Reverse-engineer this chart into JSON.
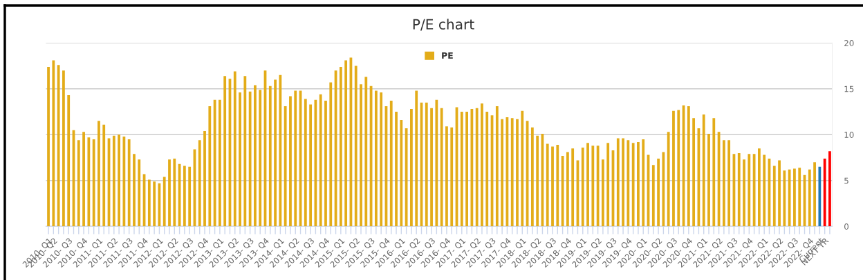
{
  "chart_data": {
    "type": "bar",
    "title": "P/E chart",
    "categories": [
      "2010- Q1",
      "2010- Q2",
      null,
      null,
      "2010- Q3",
      null,
      null,
      "2010- Q4",
      null,
      null,
      "2011- Q1",
      null,
      null,
      "2011- Q2",
      null,
      null,
      "2011- Q3",
      null,
      null,
      "2011- Q4",
      null,
      null,
      "2012- Q1",
      null,
      null,
      "2012- Q2",
      null,
      null,
      "2012- Q3",
      null,
      null,
      "2012- Q4",
      null,
      null,
      "2013- Q1",
      null,
      null,
      "2013- Q2",
      null,
      null,
      "2013- Q3",
      null,
      null,
      "2013- Q4",
      null,
      null,
      "2014- Q1",
      null,
      null,
      "2014- Q2",
      null,
      null,
      "2014- Q3",
      null,
      null,
      "2014- Q4",
      null,
      null,
      "2015- Q1",
      null,
      null,
      "2015- Q2",
      null,
      null,
      "2015- Q3",
      null,
      null,
      "2015- Q4",
      null,
      null,
      "2016- Q1",
      null,
      null,
      "2016- Q2",
      null,
      null,
      "2016- Q3",
      null,
      null,
      "2016- Q4",
      null,
      null,
      "2017- Q1",
      null,
      null,
      "2017- Q2",
      null,
      null,
      "2017- Q3",
      null,
      null,
      "2017- Q4",
      null,
      null,
      "2018- Q1",
      null,
      null,
      "2018- Q2",
      null,
      null,
      "2018- Q3",
      null,
      null,
      "2018- Q4",
      null,
      null,
      "2019- Q1",
      null,
      null,
      "2019- Q2",
      null,
      null,
      "2019- Q3",
      null,
      null,
      "2019- Q4",
      null,
      null,
      "2020- Q1",
      null,
      null,
      "2020- Q2",
      null,
      null,
      "2020- Q3",
      null,
      null,
      "2020- Q4",
      null,
      null,
      "2021- Q1",
      null,
      null,
      "2021- Q2",
      null,
      null,
      "2021- Q3",
      null,
      null,
      "2021- Q4",
      null,
      null,
      "2022- Q1",
      null,
      null,
      "2022- Q2",
      null,
      null,
      "2022- Q3",
      null,
      null,
      "2022- Q4",
      null,
      "Current",
      "NEXT YR",
      null
    ],
    "series": [
      {
        "name": "PE",
        "color": "#e3ac19",
        "colors": [
          "#e3ac19",
          "#e3ac19",
          "#e3ac19",
          "#e3ac19",
          "#e3ac19",
          "#e3ac19",
          "#e3ac19",
          "#e3ac19",
          "#e3ac19",
          "#e3ac19",
          "#e3ac19",
          "#e3ac19",
          "#e3ac19",
          "#e3ac19",
          "#e3ac19",
          "#e3ac19",
          "#e3ac19",
          "#e3ac19",
          "#e3ac19",
          "#e3ac19",
          "#e3ac19",
          "#e3ac19",
          "#e3ac19",
          "#e3ac19",
          "#e3ac19",
          "#e3ac19",
          "#e3ac19",
          "#e3ac19",
          "#e3ac19",
          "#e3ac19",
          "#e3ac19",
          "#e3ac19",
          "#e3ac19",
          "#e3ac19",
          "#e3ac19",
          "#e3ac19",
          "#e3ac19",
          "#e3ac19",
          "#e3ac19",
          "#e3ac19",
          "#e3ac19",
          "#e3ac19",
          "#e3ac19",
          "#e3ac19",
          "#e3ac19",
          "#e3ac19",
          "#e3ac19",
          "#e3ac19",
          "#e3ac19",
          "#e3ac19",
          "#e3ac19",
          "#e3ac19",
          "#e3ac19",
          "#e3ac19",
          "#e3ac19",
          "#e3ac19",
          "#e3ac19",
          "#e3ac19",
          "#e3ac19",
          "#e3ac19",
          "#e3ac19",
          "#e3ac19",
          "#e3ac19",
          "#e3ac19",
          "#e3ac19",
          "#e3ac19",
          "#e3ac19",
          "#e3ac19",
          "#e3ac19",
          "#e3ac19",
          "#e3ac19",
          "#e3ac19",
          "#e3ac19",
          "#e3ac19",
          "#e3ac19",
          "#e3ac19",
          "#e3ac19",
          "#e3ac19",
          "#e3ac19",
          "#e3ac19",
          "#e3ac19",
          "#e3ac19",
          "#e3ac19",
          "#e3ac19",
          "#e3ac19",
          "#e3ac19",
          "#e3ac19",
          "#e3ac19",
          "#e3ac19",
          "#e3ac19",
          "#e3ac19",
          "#e3ac19",
          "#e3ac19",
          "#e3ac19",
          "#e3ac19",
          "#e3ac19",
          "#e3ac19",
          "#e3ac19",
          "#e3ac19",
          "#e3ac19",
          "#e3ac19",
          "#e3ac19",
          "#e3ac19",
          "#e3ac19",
          "#e3ac19",
          "#e3ac19",
          "#e3ac19",
          "#e3ac19",
          "#e3ac19",
          "#e3ac19",
          "#e3ac19",
          "#e3ac19",
          "#e3ac19",
          "#e3ac19",
          "#e3ac19",
          "#e3ac19",
          "#e3ac19",
          "#e3ac19",
          "#e3ac19",
          "#e3ac19",
          "#e3ac19",
          "#e3ac19",
          "#e3ac19",
          "#e3ac19",
          "#e3ac19",
          "#e3ac19",
          "#e3ac19",
          "#e3ac19",
          "#e3ac19",
          "#e3ac19",
          "#e3ac19",
          "#e3ac19",
          "#e3ac19",
          "#e3ac19",
          "#e3ac19",
          "#e3ac19",
          "#e3ac19",
          "#e3ac19",
          "#e3ac19",
          "#e3ac19",
          "#e3ac19",
          "#e3ac19",
          "#e3ac19",
          "#e3ac19",
          "#e3ac19",
          "#e3ac19",
          "#e3ac19",
          "#e3ac19",
          "#e3ac19",
          "#e3ac19",
          "#e3ac19",
          "#e3ac19",
          "#e3ac19",
          "#1f77b4",
          "#ff0000",
          "#ff0000"
        ],
        "values": [
          17.4,
          18.1,
          17.6,
          17.0,
          14.3,
          10.5,
          9.4,
          10.3,
          9.7,
          9.5,
          11.5,
          11.1,
          9.6,
          9.9,
          10.0,
          9.8,
          9.5,
          7.9,
          7.3,
          5.7,
          5.1,
          4.9,
          4.7,
          5.4,
          7.3,
          7.4,
          6.8,
          6.6,
          6.5,
          8.4,
          9.4,
          10.4,
          13.1,
          13.8,
          13.8,
          16.4,
          16.1,
          16.9,
          14.6,
          16.4,
          14.7,
          15.4,
          14.9,
          17.0,
          15.3,
          16.0,
          16.5,
          13.1,
          14.2,
          14.8,
          14.8,
          13.9,
          13.3,
          13.8,
          14.4,
          13.7,
          15.7,
          17.0,
          17.4,
          18.1,
          18.4,
          17.5,
          15.5,
          16.3,
          15.3,
          14.8,
          14.6,
          13.1,
          13.7,
          12.5,
          11.6,
          10.7,
          12.8,
          14.8,
          13.5,
          13.5,
          12.9,
          13.8,
          12.9,
          10.9,
          10.8,
          13.0,
          12.5,
          12.5,
          12.8,
          12.9,
          13.4,
          12.5,
          12.1,
          13.1,
          11.7,
          11.9,
          11.8,
          11.7,
          12.6,
          11.5,
          10.8,
          9.9,
          10.1,
          9.0,
          8.7,
          8.9,
          7.7,
          8.1,
          8.5,
          7.2,
          8.6,
          9.1,
          8.8,
          8.8,
          7.3,
          9.1,
          8.3,
          9.6,
          9.6,
          9.4,
          9.1,
          9.2,
          9.5,
          7.8,
          6.7,
          7.4,
          8.1,
          10.3,
          12.6,
          12.7,
          13.2,
          13.1,
          11.8,
          10.7,
          12.2,
          10.1,
          11.8,
          10.3,
          9.4,
          9.4,
          7.9,
          8.0,
          7.3,
          7.9,
          7.9,
          8.5,
          7.8,
          7.4,
          6.6,
          7.2,
          6.1,
          6.2,
          6.3,
          6.4,
          5.6,
          6.2,
          7.0,
          6.5,
          7.4,
          8.2
        ]
      }
    ],
    "ylim": [
      0,
      20
    ],
    "yticks": [
      0,
      5,
      10,
      15,
      20
    ],
    "grid": "y",
    "legend": "top"
  }
}
